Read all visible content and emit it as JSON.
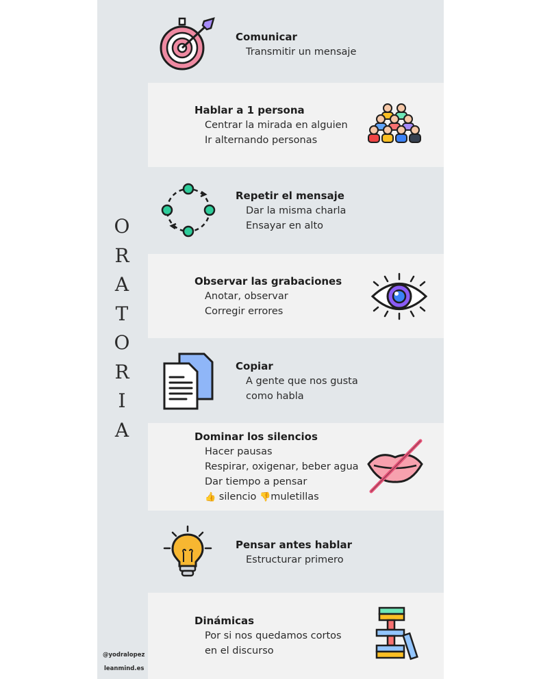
{
  "title_letters": [
    "O",
    "R",
    "A",
    "T",
    "O",
    "R",
    "I",
    "A"
  ],
  "credits": {
    "handle": "@yodralopez",
    "site": "leanmind.es"
  },
  "sections": [
    {
      "heading": "Comunicar",
      "lines": [
        "Transmitir un mensaje"
      ],
      "icon": "target-icon"
    },
    {
      "heading": "Hablar a 1 persona",
      "lines": [
        "Centrar la mirada en alguien",
        "Ir alternando personas"
      ],
      "icon": "audience-icon"
    },
    {
      "heading": "Repetir el mensaje",
      "lines": [
        "Dar la misma charla",
        "Ensayar en alto"
      ],
      "icon": "cycle-icon"
    },
    {
      "heading": "Observar las grabaciones",
      "lines": [
        "Anotar, observar",
        "Corregir errores"
      ],
      "icon": "eye-icon"
    },
    {
      "heading": "Copiar",
      "lines": [
        "A gente que nos gusta",
        "como habla"
      ],
      "icon": "copy-documents-icon"
    },
    {
      "heading": "Dominar los silencios",
      "lines": [
        "Hacer pausas",
        "Respirar, oxigenar, beber agua",
        "Dar tiempo a pensar"
      ],
      "icon": "crossed-lips-icon",
      "emoji_line": {
        "up": "👍",
        "up_text": "silencio",
        "down": "👎",
        "down_text": "muletillas"
      }
    },
    {
      "heading": "Pensar antes hablar",
      "lines": [
        "Estructurar primero"
      ],
      "icon": "lightbulb-icon"
    },
    {
      "heading": "Dinámicas",
      "lines": [
        "Por si nos quedamos cortos",
        "en el discurso"
      ],
      "icon": "blocks-tower-icon"
    }
  ],
  "colors": {
    "panel": "#e3e7ea",
    "row_light": "#f2f2f2",
    "accent_pink": "#e8557a",
    "accent_green": "#2ecc9a",
    "accent_purple": "#8b5cf6"
  }
}
